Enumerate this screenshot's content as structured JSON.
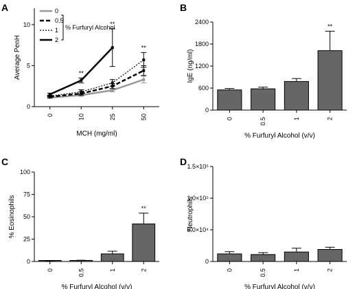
{
  "panels": {
    "A": {
      "label": "A"
    },
    "B": {
      "label": "B"
    },
    "C": {
      "label": "C"
    },
    "D": {
      "label": "D"
    }
  },
  "legend": {
    "title": "% Furfuryl  Alcohol",
    "entries": [
      "0",
      "0.5",
      "1",
      "2"
    ]
  },
  "chart_data": [
    {
      "panel": "A",
      "type": "line",
      "x": [
        "0",
        "10",
        "25",
        "50"
      ],
      "xlabel": "MCH (mg/ml)",
      "ylabel": "Average PenH",
      "ylim": [
        0,
        12
      ],
      "yticks": [
        0,
        5,
        10
      ],
      "grid": false,
      "legend_position": "top-left",
      "series": [
        {
          "name": "0",
          "color": "#999999",
          "dash": "solid",
          "values": [
            1.1,
            1.4,
            2.0,
            3.3
          ],
          "errors": [
            0.1,
            0.15,
            0.2,
            0.4
          ]
        },
        {
          "name": "0.5",
          "color": "#000000",
          "dash": "dashed-heavy",
          "values": [
            1.2,
            1.6,
            2.5,
            4.4
          ],
          "errors": [
            0.1,
            0.2,
            0.3,
            0.6
          ]
        },
        {
          "name": "1",
          "color": "#000000",
          "dash": "dotted",
          "values": [
            1.3,
            1.8,
            2.9,
            5.7
          ],
          "errors": [
            0.1,
            0.25,
            0.4,
            0.9
          ]
        },
        {
          "name": "2",
          "color": "#000000",
          "dash": "solid-heavy",
          "values": [
            1.5,
            3.2,
            7.2,
            null
          ],
          "errors": [
            0.15,
            0.3,
            2.3,
            null
          ]
        }
      ],
      "annotations": [
        {
          "x": "10",
          "text": "**"
        },
        {
          "x": "25",
          "text": "**"
        },
        {
          "x": "50",
          "text": "**"
        }
      ]
    },
    {
      "panel": "B",
      "type": "bar",
      "categories": [
        "0",
        "0.5",
        "1",
        "2"
      ],
      "values": [
        550,
        580,
        780,
        1620
      ],
      "errors": [
        40,
        45,
        80,
        530
      ],
      "xlabel": "% Furfuryl  Alcohol (v/v)",
      "ylabel": "IgE (ng/ml)",
      "ylim": [
        0,
        2400
      ],
      "yticks": [
        "0",
        "600",
        "1200",
        "1800",
        "2400"
      ],
      "annotations": [
        {
          "category": "2",
          "text": "**"
        }
      ]
    },
    {
      "panel": "C",
      "type": "bar",
      "categories": [
        "0",
        "0.5",
        "1",
        "2"
      ],
      "values": [
        0.5,
        1.0,
        8.5,
        42
      ],
      "errors": [
        0.3,
        0.4,
        3,
        12
      ],
      "xlabel": "% Furfuryl  Alcohol (v/v)",
      "ylabel": "% Eosinophils",
      "ylim": [
        0,
        100
      ],
      "yticks": [
        "0",
        "25",
        "50",
        "75",
        "100"
      ],
      "annotations": [
        {
          "category": "2",
          "text": "**"
        }
      ]
    },
    {
      "panel": "D",
      "type": "bar",
      "categories": [
        "0",
        "0.5",
        "1",
        "2"
      ],
      "values": [
        12000,
        11000,
        15000,
        19000
      ],
      "errors": [
        3500,
        3000,
        6000,
        3500
      ],
      "xlabel": "% Furfuryl  Alcohol (v/v)",
      "ylabel": "Neutrophils",
      "ylim": [
        0,
        150000
      ],
      "yticks": [
        "0",
        "5.0×10⁴",
        "1.0×10⁵",
        "1.5×10⁵"
      ]
    }
  ]
}
